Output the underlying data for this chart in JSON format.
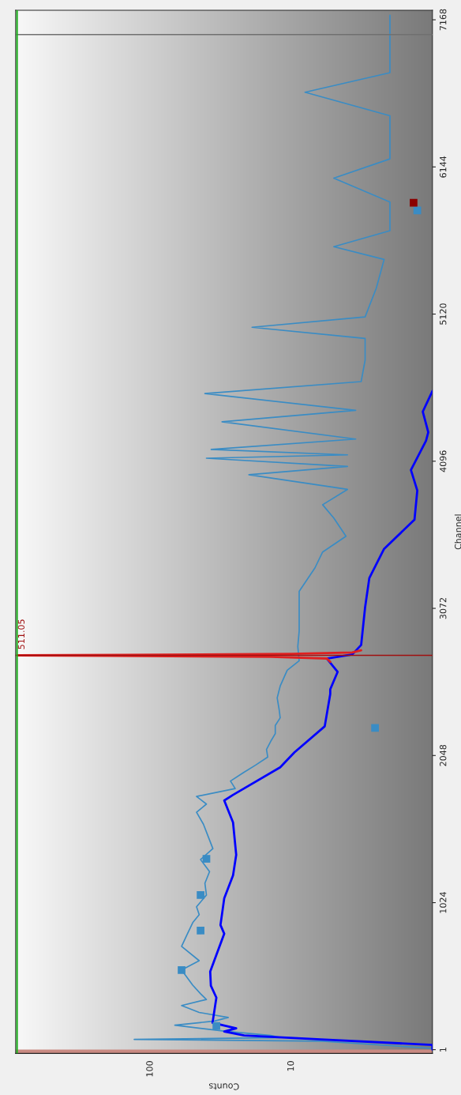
{
  "chart_data": {
    "type": "line",
    "xlabel": "Counts",
    "ylabel": "Channel",
    "log": "x",
    "xlim": [
      900,
      1
    ],
    "ylim": [
      -25,
      7234
    ],
    "xticks": [
      10,
      100
    ],
    "yticks": [
      1,
      1024,
      2048,
      3072,
      4096,
      5120,
      6144,
      7168
    ],
    "grid": false,
    "legend": false,
    "annotations": [
      "511.05"
    ],
    "series": [
      {
        "color": "#3a8cc4",
        "values": [
          10,
          60,
          72,
          85,
          100,
          130,
          171,
          200,
          225,
          260,
          308,
          350,
          390,
          450,
          555,
          620,
          720,
          800,
          885,
          940,
          995,
          1077,
          1159,
          1240,
          1324,
          1400,
          1488,
          1570,
          1653,
          1710,
          1763,
          1818,
          1870,
          1927,
          1980,
          2037,
          2090,
          2147,
          2200,
          2257,
          2310,
          2367,
          2449,
          2531,
          2641,
          2707,
          2806,
          2915,
          3025,
          3190,
          3354,
          3464,
          3574,
          3700,
          3793,
          3900,
          4002,
          4060,
          4117,
          4140,
          4178,
          4250,
          4370,
          4450,
          4567,
          4650,
          4800,
          4950,
          5028,
          5100,
          5300,
          5500,
          5589,
          5700,
          5900,
          6066,
          6200,
          6500,
          6664,
          6800,
          7000,
          7200
        ],
        "x": [
          1,
          6,
          130,
          12,
          14,
          30,
          67,
          35,
          28,
          45,
          60,
          40,
          44,
          50,
          60,
          45,
          60,
          55,
          50,
          45,
          47,
          40,
          41,
          38,
          44,
          36,
          39,
          42,
          47,
          40,
          47,
          25,
          27,
          22,
          18,
          14.7,
          15,
          14,
          13,
          13,
          12,
          12.2,
          12.6,
          12,
          10.7,
          8.8,
          9.0,
          8.8,
          8.8,
          8.8,
          6.8,
          6.0,
          4.1,
          5,
          6.0,
          4,
          20,
          4,
          40,
          4,
          37,
          3.5,
          31,
          3.5,
          41,
          3.2,
          3.0,
          3.0,
          19,
          3.0,
          2.5,
          2.2,
          5.0,
          2.0,
          2.0,
          5.0,
          2.0,
          2.0,
          8.0,
          2.0,
          2.0,
          2.0
        ]
      },
      {
        "type": "line",
        "color": "#0000ff",
        "values": [
          1,
          34,
          72,
          100,
          127,
          149,
          188,
          363,
          446,
          544,
          808,
          868,
          1055,
          1214,
          1357,
          1582,
          1735,
          1774,
          1966,
          2070,
          2251,
          2476,
          2509,
          2630,
          2723,
          2751,
          2817,
          3080,
          3283,
          3486,
          3689,
          3892,
          4035,
          4238,
          4298,
          4441,
          4584
        ],
        "x": [
          1,
          1.0,
          6.2,
          21.6,
          29.9,
          24.6,
          36.2,
          34,
          37.2,
          37.6,
          29.9,
          31.8,
          29.9,
          25.9,
          24.6,
          25.9,
          29.9,
          25.9,
          12.0,
          9.5,
          5.8,
          5.3,
          5.3,
          4.7,
          5.6,
          3.7,
          3.2,
          3.0,
          2.8,
          2.2,
          1.34,
          1.28,
          1.42,
          1.11,
          1.07,
          1.17,
          1.0
        ]
      },
      {
        "type": "line",
        "color": "#e02020",
        "values": [
          2700,
          2723,
          2735,
          2742,
          2745,
          2748,
          2755,
          2765,
          2780
        ],
        "x": [
          5.3,
          5.6,
          14,
          200,
          880,
          150,
          10,
          3.7,
          3.2
        ]
      },
      {
        "type": "scatter",
        "marker": "square",
        "color": "#3a8cc4",
        "values": [
          166,
          555,
          830,
          1077,
          1329,
          2240,
          5841
        ],
        "x": [
          34,
          60,
          44,
          44,
          40,
          2.55,
          1.28
        ]
      },
      {
        "type": "scatter",
        "marker": "square",
        "color": "#8b0000",
        "values": [
          5895
        ],
        "x": [
          1.36
        ]
      }
    ],
    "ref_lines": [
      {
        "axis": "y",
        "value": 2745,
        "color": "#a01010"
      },
      {
        "axis": "y",
        "value": 7065,
        "color": "#707070"
      },
      {
        "axis": "x",
        "value": 880,
        "color": "#20b020"
      }
    ],
    "bands": [
      {
        "axis": "y",
        "from": -25,
        "to": 1,
        "color": "#c98a82"
      }
    ]
  }
}
